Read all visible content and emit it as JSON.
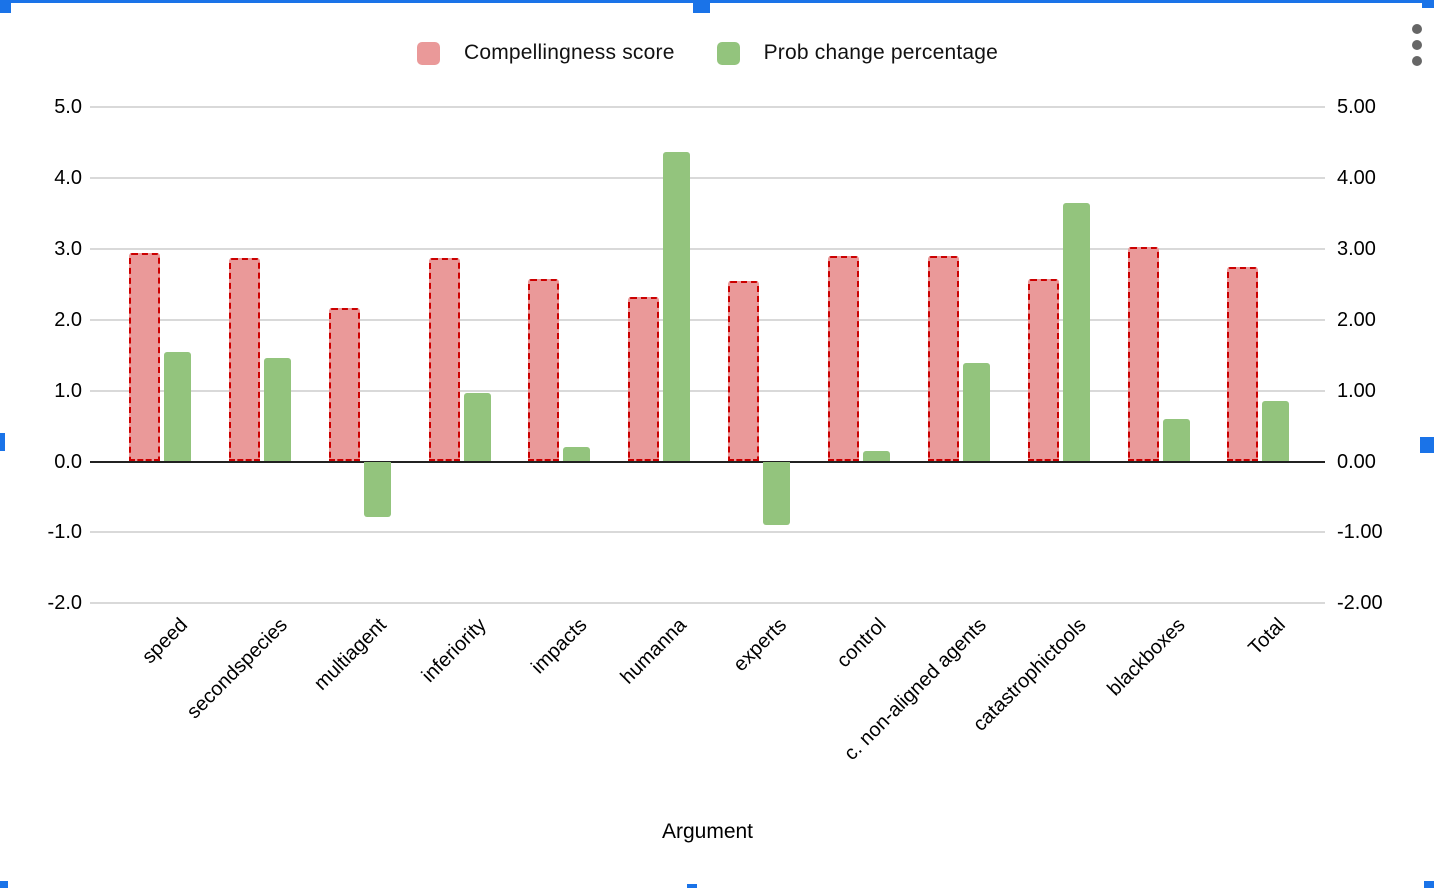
{
  "ui": {
    "accent_color": "#1a73e8",
    "menu_dot_color": "#666666"
  },
  "chart_data": {
    "type": "bar",
    "title": "",
    "xlabel": "Argument",
    "ylabel": "",
    "grid": true,
    "legend_position": "top",
    "ylim": [
      -2,
      5
    ],
    "left_axis_ticks": [
      "5.0",
      "4.0",
      "3.0",
      "2.0",
      "1.0",
      "0.0",
      "-1.0",
      "-2.0"
    ],
    "right_axis_ticks": [
      "5.00",
      "4.00",
      "3.00",
      "2.00",
      "1.00",
      "0.00",
      "-1.00",
      "-2.00"
    ],
    "tick_values": [
      5,
      4,
      3,
      2,
      1,
      0,
      -1,
      -2
    ],
    "categories": [
      "speed",
      "secondspecies",
      "multiagent",
      "inferiority",
      "impacts",
      "humanna",
      "experts",
      "control",
      "c. non-aligned agents",
      "catastrophictools",
      "blackboxes",
      "Total"
    ],
    "series": [
      {
        "name": "Compellingness score",
        "color": "#ea9999",
        "border_color": "#cc0000",
        "border_style": "dashed",
        "values": [
          2.94,
          2.87,
          2.16,
          2.87,
          2.57,
          2.32,
          2.55,
          2.9,
          2.9,
          2.58,
          3.03,
          2.74
        ]
      },
      {
        "name": "Prob change percentage",
        "color": "#93c47d",
        "values": [
          1.55,
          1.46,
          -0.78,
          0.97,
          0.2,
          4.36,
          -0.9,
          0.15,
          1.39,
          3.64,
          0.6,
          0.85
        ]
      }
    ],
    "gridline_color": "#d9d9d9",
    "zero_line_color": "#212121"
  }
}
